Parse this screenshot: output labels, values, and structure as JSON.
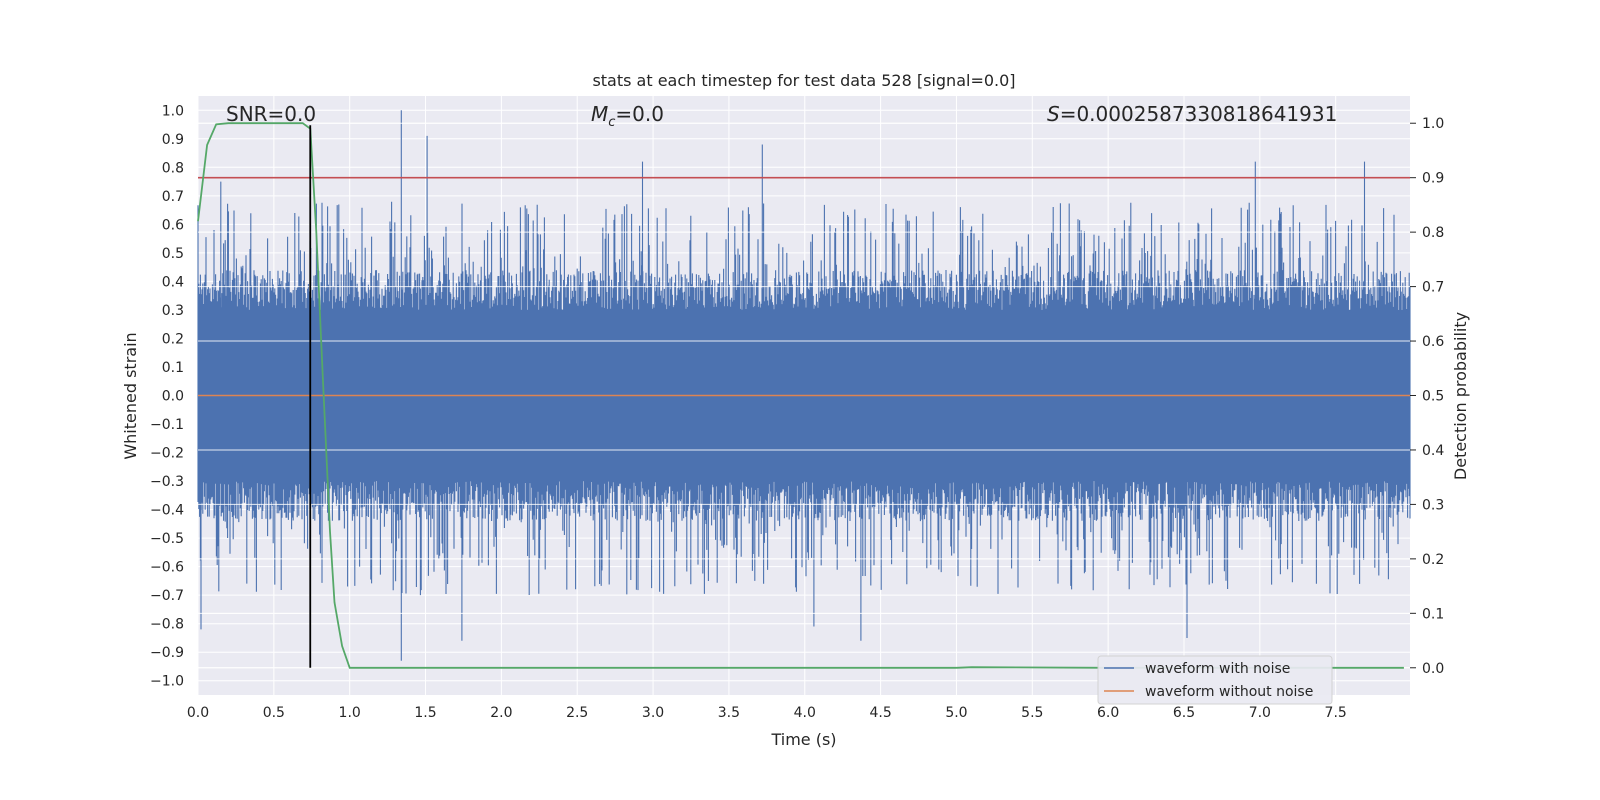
{
  "chart_data": {
    "type": "line",
    "title": "stats at each timestep for test data 528 [signal=0.0]",
    "xlabel": "Time (s)",
    "ylabel_left": "Whitened strain",
    "ylabel_right": "Detection probability",
    "xlim": [
      0.0,
      7.99
    ],
    "ylim_left": [
      -1.05,
      1.05
    ],
    "ylim_right": [
      -0.05,
      1.05
    ],
    "x_ticks": [
      "0.0",
      "0.5",
      "1.0",
      "1.5",
      "2.0",
      "2.5",
      "3.0",
      "3.5",
      "4.0",
      "4.5",
      "5.0",
      "5.5",
      "6.0",
      "6.5",
      "7.0",
      "7.5"
    ],
    "y_left_ticks": [
      "1.0",
      "0.9",
      "0.8",
      "0.7",
      "0.6",
      "0.5",
      "0.4",
      "0.3",
      "0.2",
      "0.1",
      "0.0",
      "−0.1",
      "−0.2",
      "−0.3",
      "−0.4",
      "−0.5",
      "−0.6",
      "−0.7",
      "−0.8",
      "−0.9",
      "−1.0"
    ],
    "y_right_ticks": [
      "1.0",
      "0.9",
      "0.8",
      "0.7",
      "0.6",
      "0.5",
      "0.4",
      "0.3",
      "0.2",
      "0.1",
      "0.0"
    ],
    "grid": true,
    "legend_location": "lower-right",
    "annotations": {
      "snr": "SNR=0.0",
      "mc_symbol": "M",
      "mc_sub": "c",
      "mc_value": "=0.0",
      "s_symbol": "S",
      "s_value": "=0.0002587330818641931"
    },
    "threshold_right": 0.9,
    "marker_time": 0.74,
    "series": [
      {
        "name": "waveform with noise",
        "axis": "left",
        "color": "#4c72b0",
        "style": "dense noise, mostly within ±0.4, spikes to 1.0 near t=1.34 and -0.93 near t=1.34",
        "spikes_up": [
          [
            1.34,
            1.0
          ],
          [
            1.51,
            0.91
          ],
          [
            3.72,
            0.88
          ],
          [
            2.93,
            0.82
          ],
          [
            6.97,
            0.82
          ],
          [
            7.69,
            0.82
          ],
          [
            0.15,
            0.75
          ]
        ],
        "spikes_down": [
          [
            1.34,
            -0.93
          ],
          [
            6.52,
            -0.85
          ],
          [
            1.74,
            -0.86
          ],
          [
            4.37,
            -0.86
          ],
          [
            0.02,
            -0.82
          ],
          [
            4.06,
            -0.81
          ]
        ]
      },
      {
        "name": "waveform without noise",
        "axis": "left",
        "color": "#dd8452",
        "x": [
          0.0,
          7.99
        ],
        "y": [
          0.0,
          0.0
        ]
      },
      {
        "name": "",
        "axis": "right",
        "color": "#55a868",
        "x": [
          0.0,
          0.06,
          0.12,
          0.2,
          0.3,
          0.45,
          0.6,
          0.69,
          0.74,
          0.78,
          0.82,
          0.87,
          0.9,
          0.95,
          1.0,
          1.1,
          2.0,
          3.0,
          4.0,
          5.0,
          5.1,
          6.0,
          7.0,
          7.95
        ],
        "y": [
          0.82,
          0.96,
          0.998,
          1.0,
          1.0,
          1.0,
          1.0,
          1.0,
          0.99,
          0.8,
          0.55,
          0.25,
          0.12,
          0.04,
          0.0,
          0.0,
          0.0,
          0.0,
          0.0,
          0.0,
          0.001,
          0.0,
          0.0,
          0.0
        ]
      }
    ],
    "colors": {
      "background": "#eaeaf2",
      "grid": "#ffffff",
      "noise": "#4c72b0",
      "clean": "#dd8452",
      "prob": "#55a868",
      "threshold": "#c44e52",
      "marker": "#000000"
    }
  }
}
